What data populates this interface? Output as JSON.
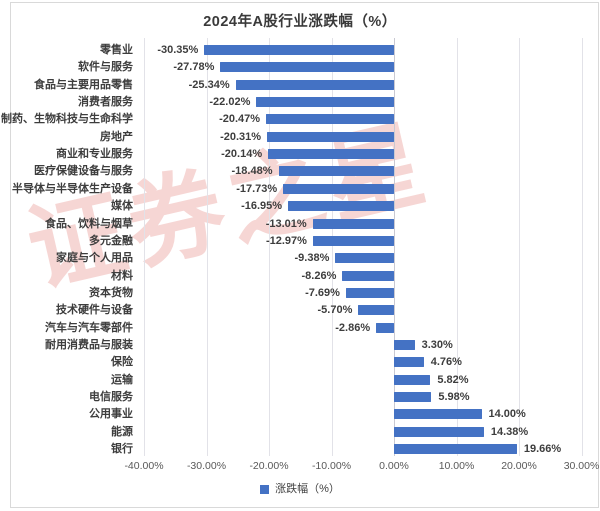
{
  "title": "2024年A股行业涨跌幅（%）",
  "watermark": {
    "text": "证券之星"
  },
  "legend": {
    "label": "涨跌幅（%）"
  },
  "colors": {
    "bar": "#4472C4",
    "gridline": "#e2e2e8",
    "watermark": "rgba(224,118,114,0.30)"
  },
  "chart_data": {
    "type": "bar",
    "orientation": "horizontal",
    "title": "2024年A股行业涨跌幅（%）",
    "categories": [
      "零售业",
      "软件与服务",
      "食品与主要用品零售",
      "消费者服务",
      "制药、生物科技与生命科学",
      "房地产",
      "商业和专业服务",
      "医疗保健设备与服务",
      "半导体与半导体生产设备",
      "媒体",
      "食品、饮料与烟草",
      "多元金融",
      "家庭与个人用品",
      "材料",
      "资本货物",
      "技术硬件与设备",
      "汽车与汽车零部件",
      "耐用消费品与服装",
      "保险",
      "运输",
      "电信服务",
      "公用事业",
      "能源",
      "银行"
    ],
    "values": [
      -30.35,
      -27.78,
      -25.34,
      -22.02,
      -20.47,
      -20.31,
      -20.14,
      -18.48,
      -17.73,
      -16.95,
      -13.01,
      -12.97,
      -9.38,
      -8.26,
      -7.69,
      -5.7,
      -2.86,
      3.3,
      4.76,
      5.82,
      5.98,
      14.0,
      14.38,
      19.66
    ],
    "value_labels": [
      "-30.35%",
      "-27.78%",
      "-25.34%",
      "-22.02%",
      "-20.47%",
      "-20.31%",
      "-20.14%",
      "-18.48%",
      "-17.73%",
      "-16.95%",
      "-13.01%",
      "-12.97%",
      "-9.38%",
      "-8.26%",
      "-7.69%",
      "-5.70%",
      "-2.86%",
      "3.30%",
      "4.76%",
      "5.82%",
      "5.98%",
      "14.00%",
      "14.38%",
      "19.66%"
    ],
    "xlim": [
      -40,
      30
    ],
    "x_ticks": [
      -40,
      -30,
      -20,
      -10,
      0,
      10,
      20,
      30
    ],
    "x_tick_labels": [
      "-40.00%",
      "-30.00%",
      "-20.00%",
      "-10.00%",
      "0.00%",
      "10.00%",
      "20.00%",
      "30.00%"
    ],
    "grid": true,
    "legend_position": "bottom",
    "series_name": "涨跌幅（%）"
  }
}
